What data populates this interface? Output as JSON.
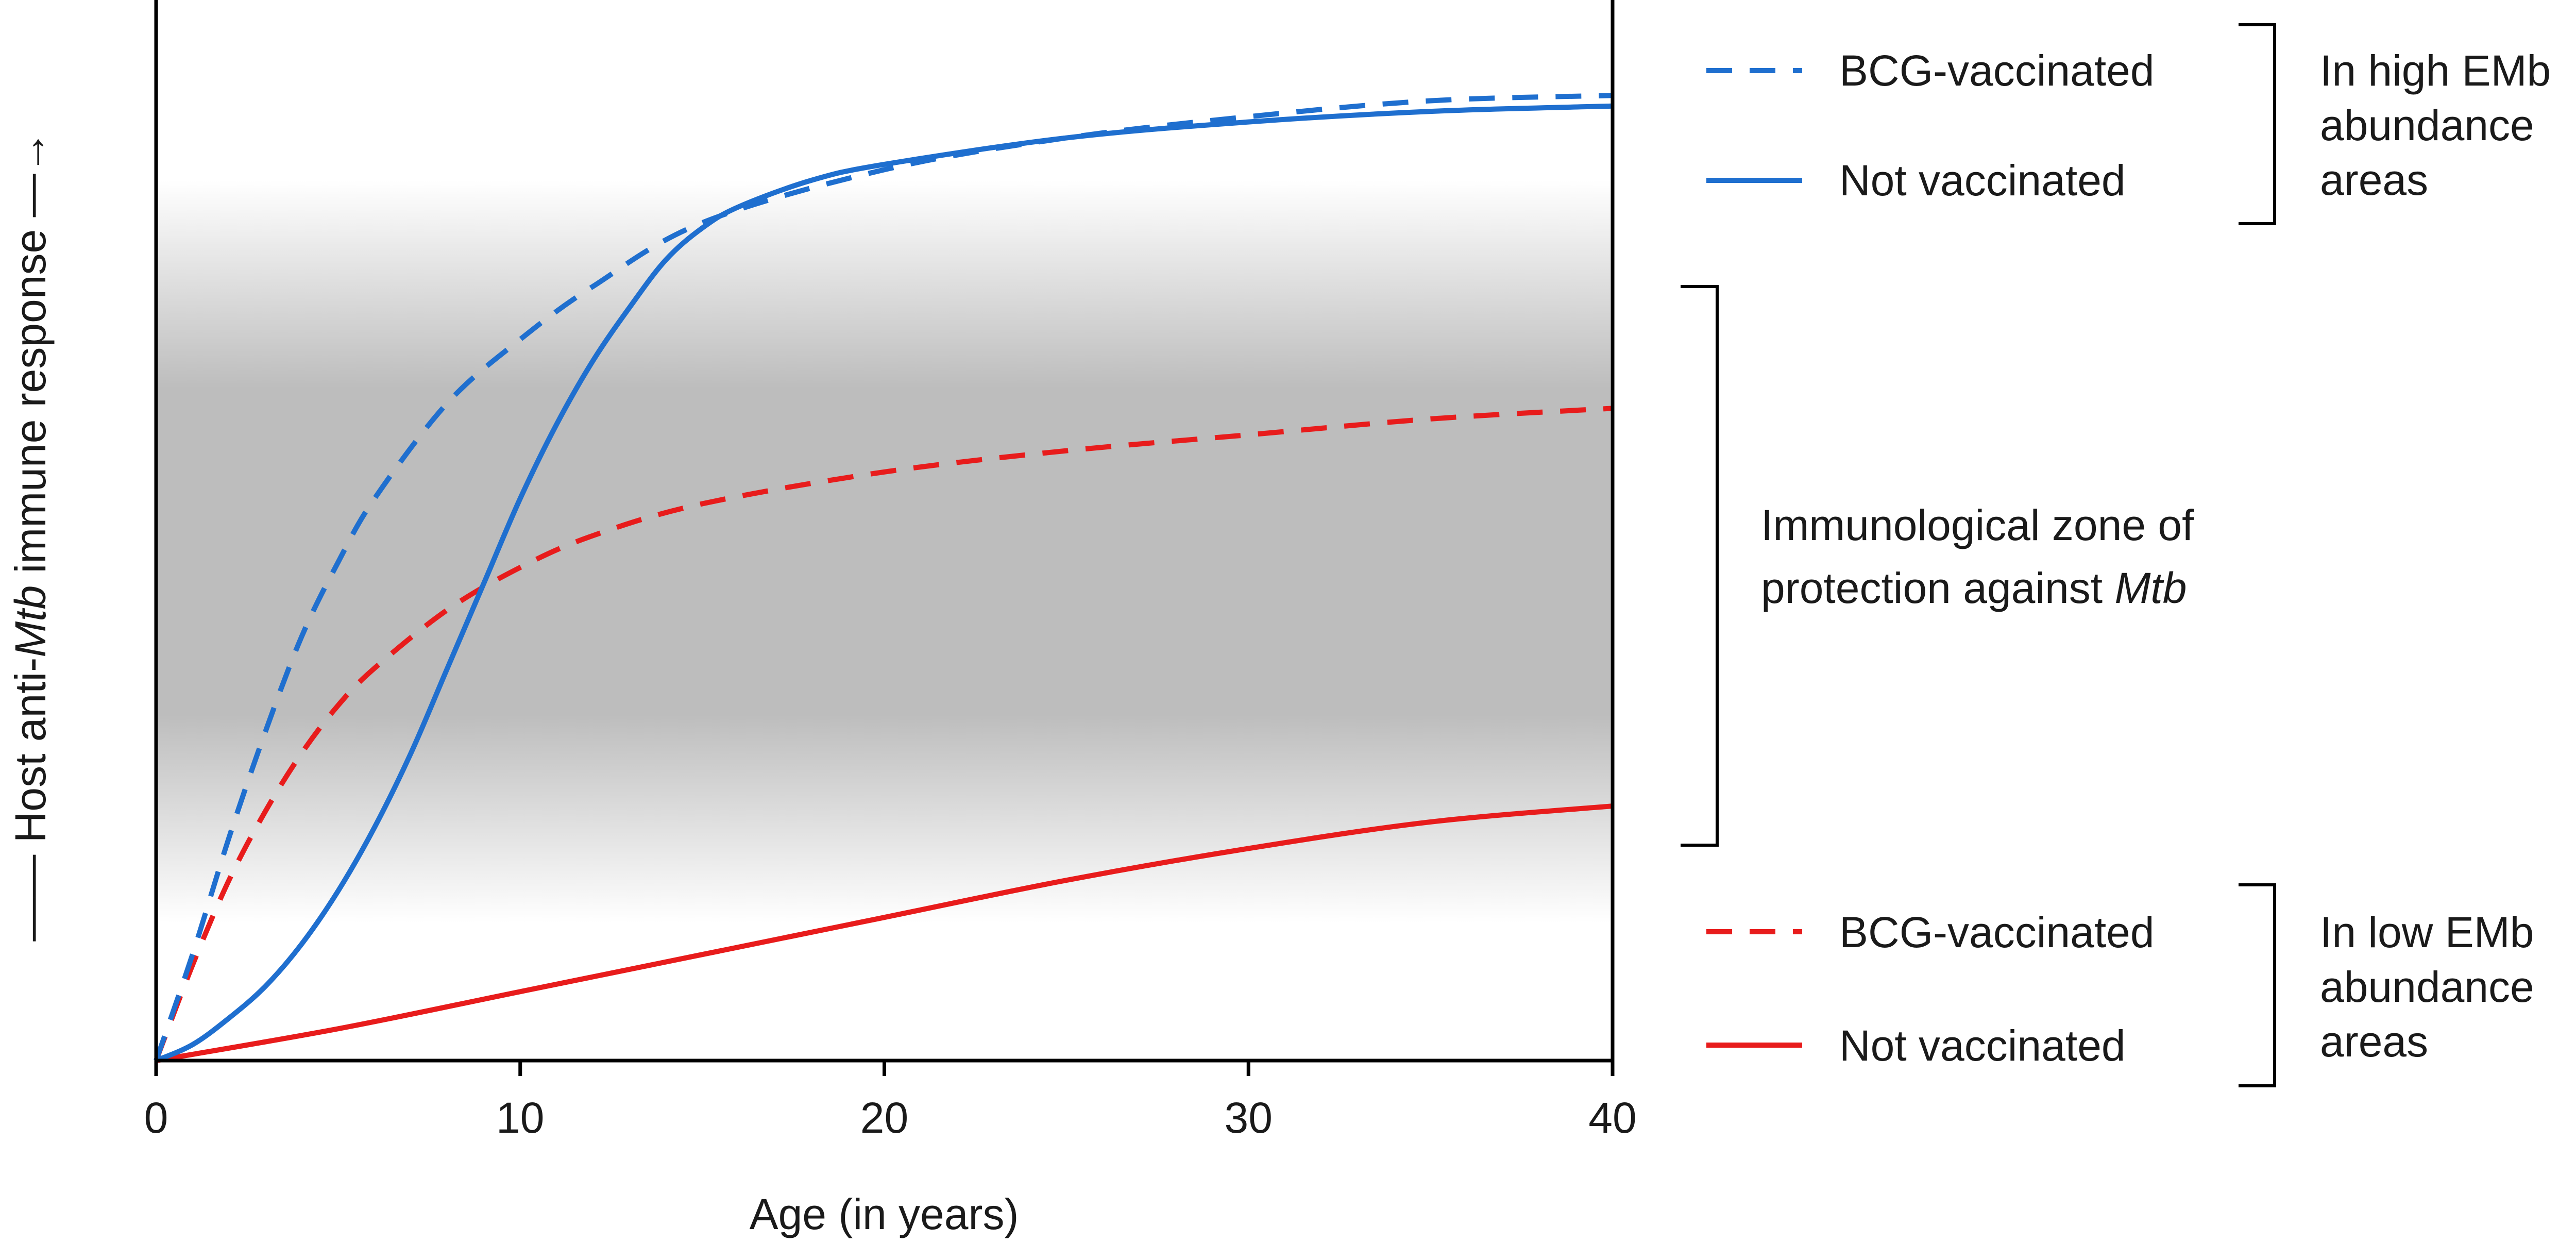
{
  "chart_data": {
    "type": "line",
    "title": "",
    "xlabel": "Age (in years)",
    "ylabel": {
      "prefix": "Host anti-",
      "italic": "Mtb",
      "suffix": " immune response",
      "arrow": "—— ",
      "arrow_end": " —→"
    },
    "xlim": [
      0,
      40
    ],
    "ylim": [
      0,
      100
    ],
    "x_ticks": [
      "0",
      "10",
      "20",
      "30",
      "40"
    ],
    "y_scale": "qualitative (no numeric ticks); values relative to full axis height",
    "grid": false,
    "protection_zone": {
      "y_range": [
        20,
        75
      ],
      "color": "#b8b8b8",
      "label_line1": "Immunological zone of",
      "label_line2_prefix": "protection against ",
      "label_line2_italic": "Mtb"
    },
    "series": [
      {
        "name": "BCG-vaccinated",
        "group": "In high EMb abundance areas",
        "color": "#1f6fcf",
        "dash": "dashed",
        "x": [
          0,
          1,
          2,
          3,
          4,
          5,
          6,
          8,
          10,
          12,
          15,
          20,
          25,
          30,
          35,
          40
        ],
        "y": [
          0,
          10,
          21,
          31,
          40,
          47,
          53,
          62,
          68,
          73,
          79,
          84,
          87,
          89,
          90.5,
          91
        ]
      },
      {
        "name": "Not vaccinated",
        "group": "In high EMb abundance areas",
        "color": "#1f6fcf",
        "dash": "solid",
        "x": [
          0,
          1,
          2,
          3,
          4,
          5,
          6,
          7,
          8,
          9,
          10,
          11,
          12,
          13,
          14,
          15,
          16,
          18,
          20,
          25,
          30,
          35,
          40
        ],
        "y": [
          0,
          1.5,
          4,
          7,
          11,
          16,
          22,
          29,
          37,
          45,
          53,
          60,
          66,
          71,
          75.5,
          78.5,
          80.5,
          83,
          84.5,
          87,
          88.5,
          89.5,
          90
        ]
      },
      {
        "name": "BCG-vaccinated",
        "group": "In low EMb abundance areas",
        "color": "#e81c1c",
        "dash": "dashed",
        "x": [
          0,
          1,
          2,
          3,
          4,
          5,
          6,
          8,
          10,
          12,
          15,
          20,
          25,
          30,
          35,
          40
        ],
        "y": [
          0,
          9,
          17,
          23.5,
          29,
          33.5,
          37,
          42.5,
          46.5,
          49.5,
          52.5,
          55.5,
          57.5,
          59,
          60.5,
          61.5
        ]
      },
      {
        "name": "Not vaccinated",
        "group": "In low EMb abundance areas",
        "color": "#e81c1c",
        "dash": "solid",
        "x": [
          0,
          5,
          10,
          15,
          20,
          25,
          30,
          35,
          40
        ],
        "y": [
          0,
          3,
          6.5,
          10,
          13.5,
          17,
          20,
          22.5,
          24
        ]
      }
    ],
    "legend_groups": [
      {
        "label_lines": [
          "In high EMb",
          "abundance",
          "areas"
        ],
        "entries": [
          {
            "label": "BCG-vaccinated",
            "color": "#1f6fcf",
            "dash": "dashed"
          },
          {
            "label": "Not vaccinated",
            "color": "#1f6fcf",
            "dash": "solid"
          }
        ]
      },
      {
        "label_lines": [
          "In low EMb",
          "abundance",
          "areas"
        ],
        "entries": [
          {
            "label": "BCG-vaccinated",
            "color": "#e81c1c",
            "dash": "dashed"
          },
          {
            "label": "Not vaccinated",
            "color": "#e81c1c",
            "dash": "solid"
          }
        ]
      }
    ],
    "legend_placement": "right"
  }
}
